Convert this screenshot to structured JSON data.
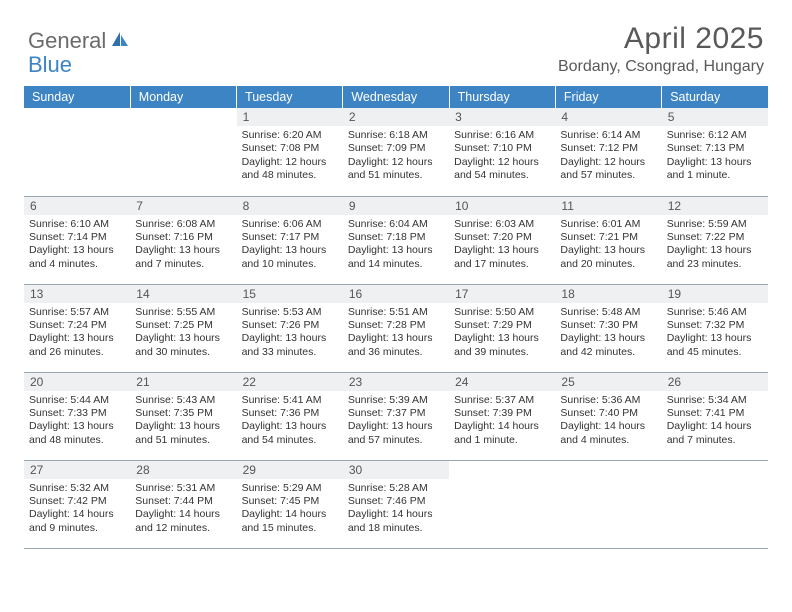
{
  "brand": {
    "part1": "General",
    "part2": "Blue"
  },
  "title": "April 2025",
  "location": "Bordany, Csongrad, Hungary",
  "colors": {
    "header_bg": "#3d84c4",
    "daynum_bg": "#eef0f2",
    "text": "#333333",
    "title": "#595959",
    "rule": "#9aa6b2"
  },
  "weekdays": [
    "Sunday",
    "Monday",
    "Tuesday",
    "Wednesday",
    "Thursday",
    "Friday",
    "Saturday"
  ],
  "weeks": [
    [
      null,
      null,
      {
        "n": "1",
        "sr": "Sunrise: 6:20 AM",
        "ss": "Sunset: 7:08 PM",
        "dl": "Daylight: 12 hours and 48 minutes."
      },
      {
        "n": "2",
        "sr": "Sunrise: 6:18 AM",
        "ss": "Sunset: 7:09 PM",
        "dl": "Daylight: 12 hours and 51 minutes."
      },
      {
        "n": "3",
        "sr": "Sunrise: 6:16 AM",
        "ss": "Sunset: 7:10 PM",
        "dl": "Daylight: 12 hours and 54 minutes."
      },
      {
        "n": "4",
        "sr": "Sunrise: 6:14 AM",
        "ss": "Sunset: 7:12 PM",
        "dl": "Daylight: 12 hours and 57 minutes."
      },
      {
        "n": "5",
        "sr": "Sunrise: 6:12 AM",
        "ss": "Sunset: 7:13 PM",
        "dl": "Daylight: 13 hours and 1 minute."
      }
    ],
    [
      {
        "n": "6",
        "sr": "Sunrise: 6:10 AM",
        "ss": "Sunset: 7:14 PM",
        "dl": "Daylight: 13 hours and 4 minutes."
      },
      {
        "n": "7",
        "sr": "Sunrise: 6:08 AM",
        "ss": "Sunset: 7:16 PM",
        "dl": "Daylight: 13 hours and 7 minutes."
      },
      {
        "n": "8",
        "sr": "Sunrise: 6:06 AM",
        "ss": "Sunset: 7:17 PM",
        "dl": "Daylight: 13 hours and 10 minutes."
      },
      {
        "n": "9",
        "sr": "Sunrise: 6:04 AM",
        "ss": "Sunset: 7:18 PM",
        "dl": "Daylight: 13 hours and 14 minutes."
      },
      {
        "n": "10",
        "sr": "Sunrise: 6:03 AM",
        "ss": "Sunset: 7:20 PM",
        "dl": "Daylight: 13 hours and 17 minutes."
      },
      {
        "n": "11",
        "sr": "Sunrise: 6:01 AM",
        "ss": "Sunset: 7:21 PM",
        "dl": "Daylight: 13 hours and 20 minutes."
      },
      {
        "n": "12",
        "sr": "Sunrise: 5:59 AM",
        "ss": "Sunset: 7:22 PM",
        "dl": "Daylight: 13 hours and 23 minutes."
      }
    ],
    [
      {
        "n": "13",
        "sr": "Sunrise: 5:57 AM",
        "ss": "Sunset: 7:24 PM",
        "dl": "Daylight: 13 hours and 26 minutes."
      },
      {
        "n": "14",
        "sr": "Sunrise: 5:55 AM",
        "ss": "Sunset: 7:25 PM",
        "dl": "Daylight: 13 hours and 30 minutes."
      },
      {
        "n": "15",
        "sr": "Sunrise: 5:53 AM",
        "ss": "Sunset: 7:26 PM",
        "dl": "Daylight: 13 hours and 33 minutes."
      },
      {
        "n": "16",
        "sr": "Sunrise: 5:51 AM",
        "ss": "Sunset: 7:28 PM",
        "dl": "Daylight: 13 hours and 36 minutes."
      },
      {
        "n": "17",
        "sr": "Sunrise: 5:50 AM",
        "ss": "Sunset: 7:29 PM",
        "dl": "Daylight: 13 hours and 39 minutes."
      },
      {
        "n": "18",
        "sr": "Sunrise: 5:48 AM",
        "ss": "Sunset: 7:30 PM",
        "dl": "Daylight: 13 hours and 42 minutes."
      },
      {
        "n": "19",
        "sr": "Sunrise: 5:46 AM",
        "ss": "Sunset: 7:32 PM",
        "dl": "Daylight: 13 hours and 45 minutes."
      }
    ],
    [
      {
        "n": "20",
        "sr": "Sunrise: 5:44 AM",
        "ss": "Sunset: 7:33 PM",
        "dl": "Daylight: 13 hours and 48 minutes."
      },
      {
        "n": "21",
        "sr": "Sunrise: 5:43 AM",
        "ss": "Sunset: 7:35 PM",
        "dl": "Daylight: 13 hours and 51 minutes."
      },
      {
        "n": "22",
        "sr": "Sunrise: 5:41 AM",
        "ss": "Sunset: 7:36 PM",
        "dl": "Daylight: 13 hours and 54 minutes."
      },
      {
        "n": "23",
        "sr": "Sunrise: 5:39 AM",
        "ss": "Sunset: 7:37 PM",
        "dl": "Daylight: 13 hours and 57 minutes."
      },
      {
        "n": "24",
        "sr": "Sunrise: 5:37 AM",
        "ss": "Sunset: 7:39 PM",
        "dl": "Daylight: 14 hours and 1 minute."
      },
      {
        "n": "25",
        "sr": "Sunrise: 5:36 AM",
        "ss": "Sunset: 7:40 PM",
        "dl": "Daylight: 14 hours and 4 minutes."
      },
      {
        "n": "26",
        "sr": "Sunrise: 5:34 AM",
        "ss": "Sunset: 7:41 PM",
        "dl": "Daylight: 14 hours and 7 minutes."
      }
    ],
    [
      {
        "n": "27",
        "sr": "Sunrise: 5:32 AM",
        "ss": "Sunset: 7:42 PM",
        "dl": "Daylight: 14 hours and 9 minutes."
      },
      {
        "n": "28",
        "sr": "Sunrise: 5:31 AM",
        "ss": "Sunset: 7:44 PM",
        "dl": "Daylight: 14 hours and 12 minutes."
      },
      {
        "n": "29",
        "sr": "Sunrise: 5:29 AM",
        "ss": "Sunset: 7:45 PM",
        "dl": "Daylight: 14 hours and 15 minutes."
      },
      {
        "n": "30",
        "sr": "Sunrise: 5:28 AM",
        "ss": "Sunset: 7:46 PM",
        "dl": "Daylight: 14 hours and 18 minutes."
      },
      null,
      null,
      null
    ]
  ]
}
